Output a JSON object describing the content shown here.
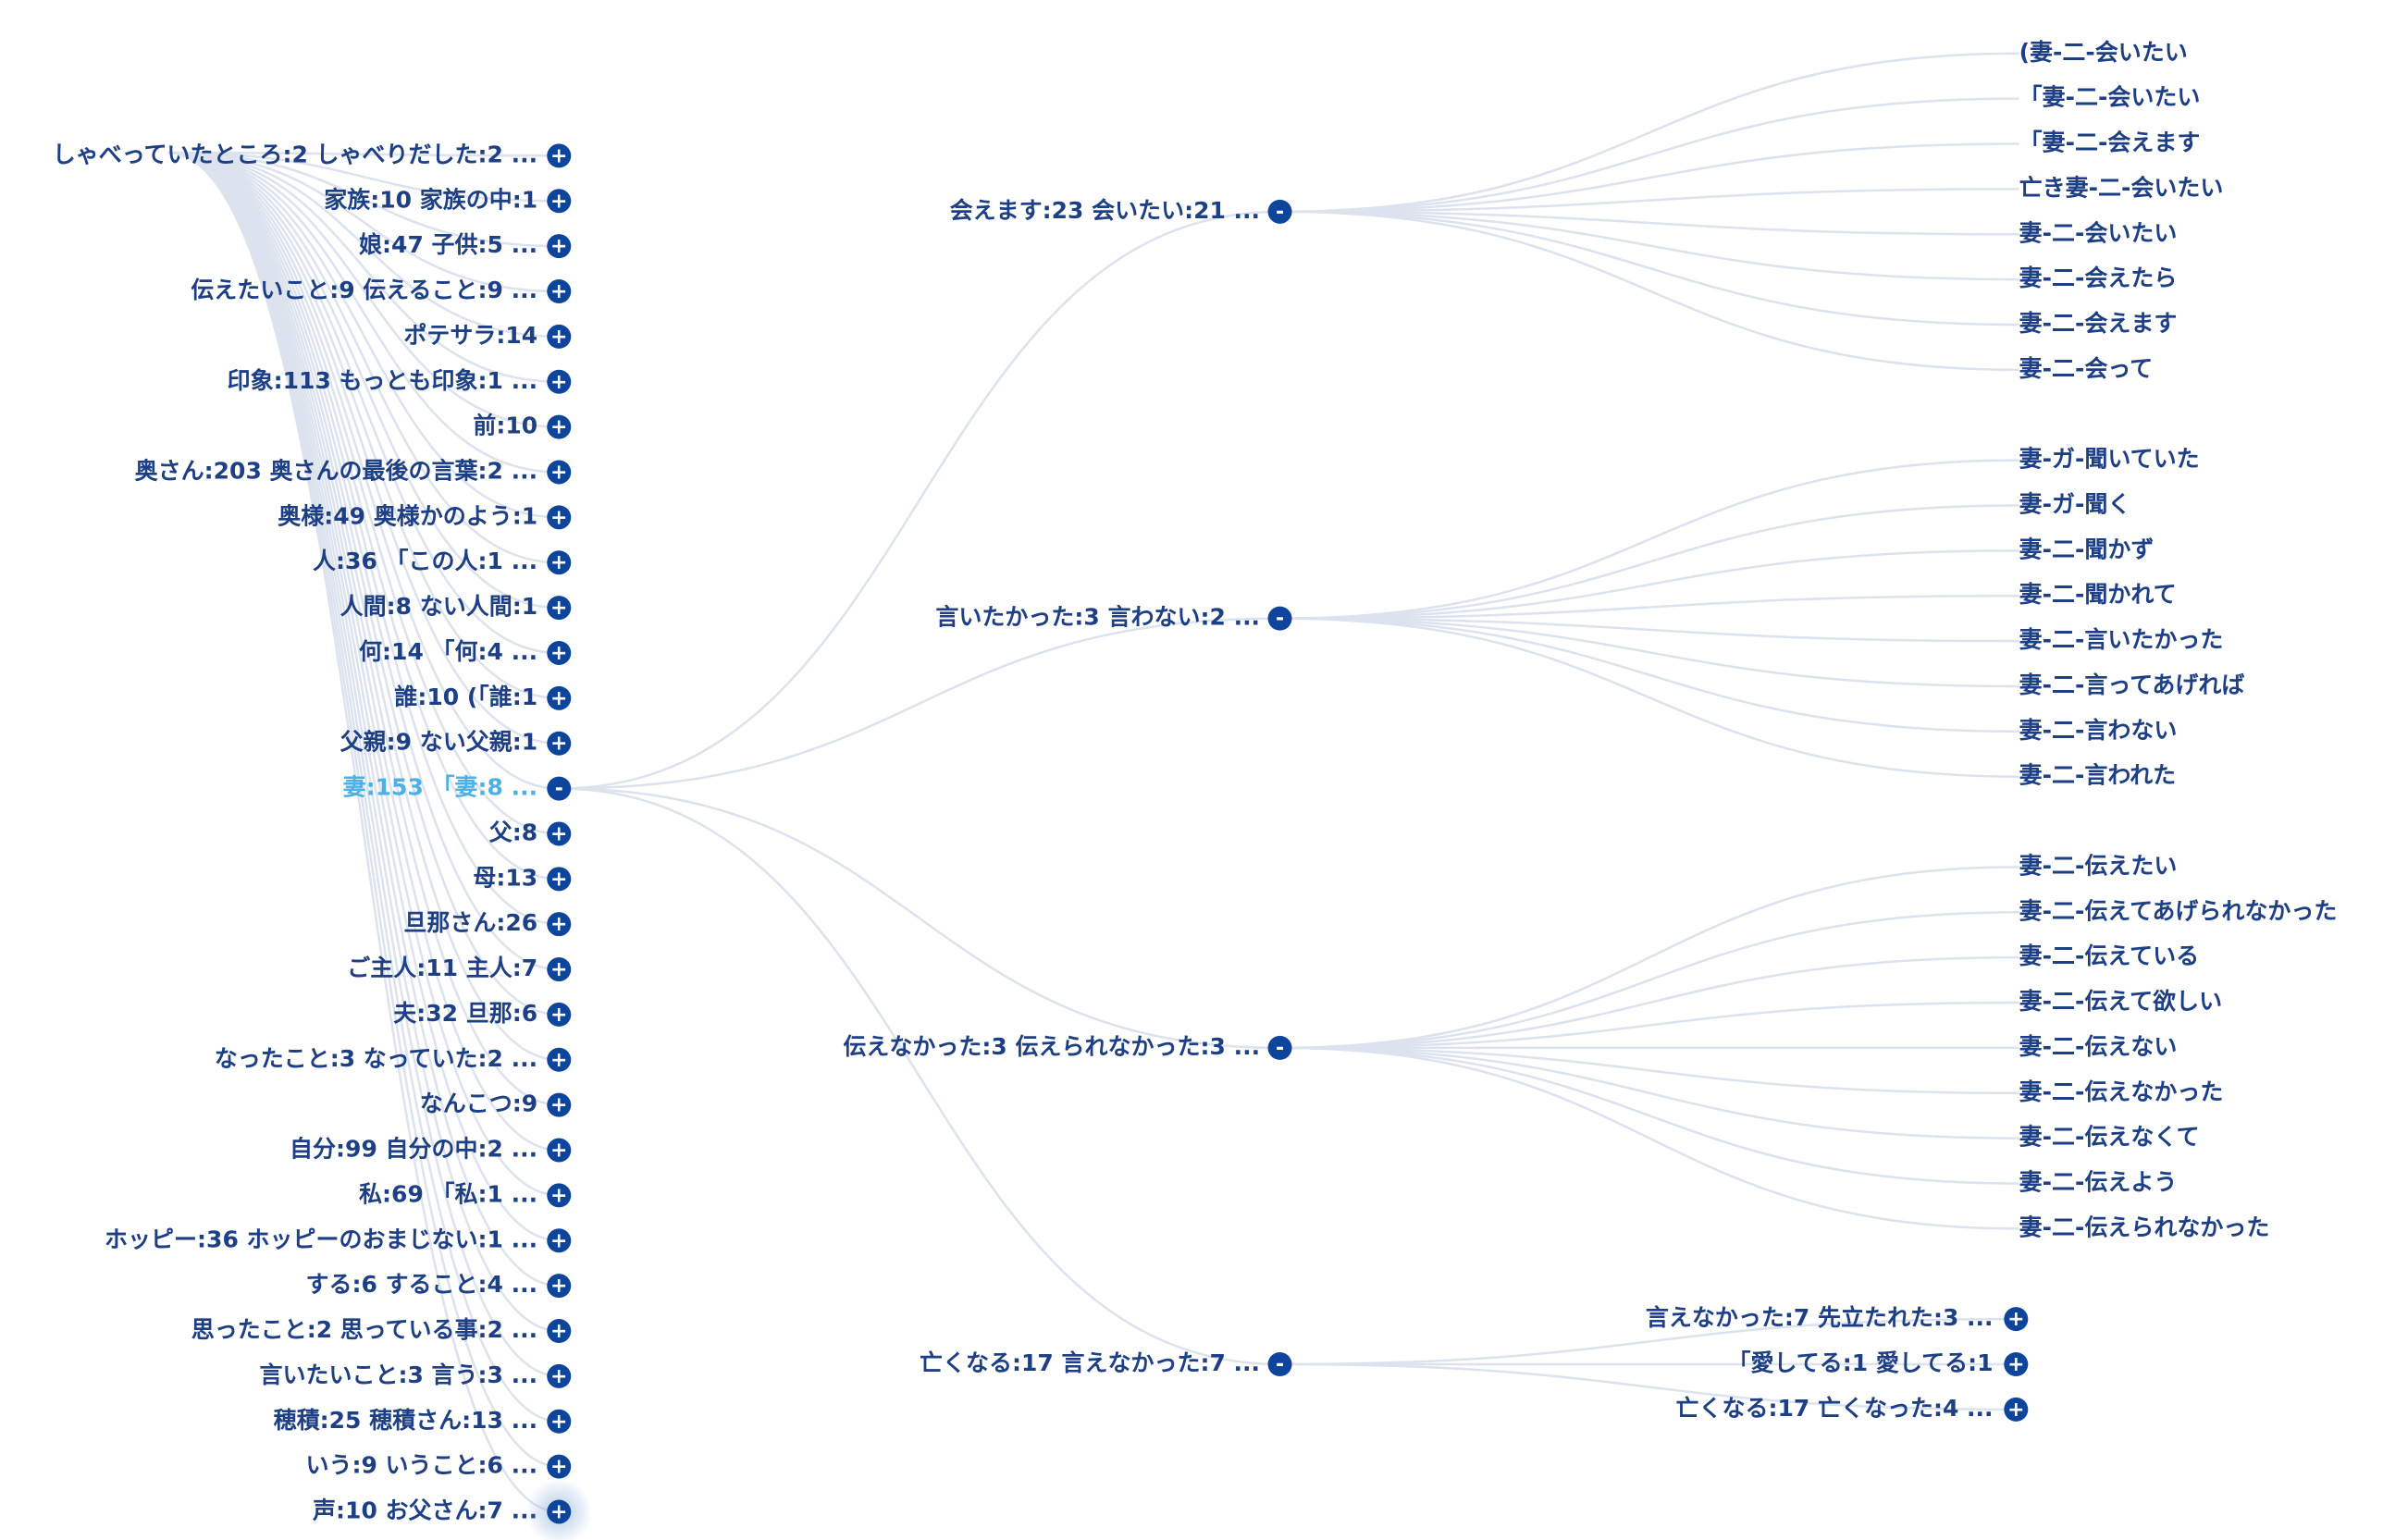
{
  "tree": {
    "level1": [
      "しゃべっていたところ:2 しゃべりだした:2 ...",
      "家族:10 家族の中:1",
      "娘:47 子供:5 ...",
      "伝えたいこと:9 伝えること:9 ...",
      "ポテサラ:14",
      "印象:113 もっとも印象:1 ...",
      "前:10",
      "奥さん:203 奥さんの最後の言葉:2 ...",
      "奥様:49 奥様かのよう:1",
      "人:36 「この人:1 ...",
      "人間:8 ない人間:1",
      "何:14 「何:4 ...",
      "誰:10 (「誰:1",
      "父親:9 ない父親:1",
      "妻:153 「妻:8 ...",
      "父:8",
      "母:13",
      "旦那さん:26",
      "ご主人:11 主人:7",
      "夫:32 旦那:6",
      "なったこと:3 なっていた:2 ...",
      "なんこつ:9",
      "自分:99 自分の中:2 ...",
      "私:69 「私:1 ...",
      "ホッピー:36 ホッピーのおまじない:1 ...",
      "する:6 すること:4 ...",
      "思ったこと:2 思っている事:2 ...",
      "言いたいこと:3 言う:3 ...",
      "穂積:25 穂積さん:13 ...",
      "いう:9 いうこと:6 ...",
      "声:10 お父さん:7 ..."
    ],
    "level2": [
      {
        "label": "会えます:23 会いたい:21 ...",
        "children": [
          "(妻-二-会いたい",
          "「妻-二-会いたい",
          "「妻-二-会えます",
          "亡き妻-二-会いたい",
          "妻-二-会いたい",
          "妻-二-会えたら",
          "妻-二-会えます",
          "妻-二-会って"
        ]
      },
      {
        "label": "言いたかった:3 言わない:2 ...",
        "children": [
          "妻-ガ-聞いていた",
          "妻-ガ-聞く",
          "妻-二-聞かず",
          "妻-二-聞かれて",
          "妻-二-言いたかった",
          "妻-二-言ってあげれば",
          "妻-二-言わない",
          "妻-二-言われた"
        ]
      },
      {
        "label": "伝えなかった:3 伝えられなかった:3 ...",
        "children": [
          "妻-二-伝えたい",
          "妻-二-伝えてあげられなかった",
          "妻-二-伝えている",
          "妻-二-伝えて欲しい",
          "妻-二-伝えない",
          "妻-二-伝えなかった",
          "妻-二-伝えなくて",
          "妻-二-伝えよう",
          "妻-二-伝えられなかった"
        ]
      },
      {
        "label": "亡くなる:17 言えなかった:7 ...",
        "collapsed_children": [
          "言えなかった:7 先立たれた:3 ...",
          "「愛してる:1 愛してる:1",
          "亡くなる:17 亡くなった:4 ..."
        ]
      }
    ]
  }
}
